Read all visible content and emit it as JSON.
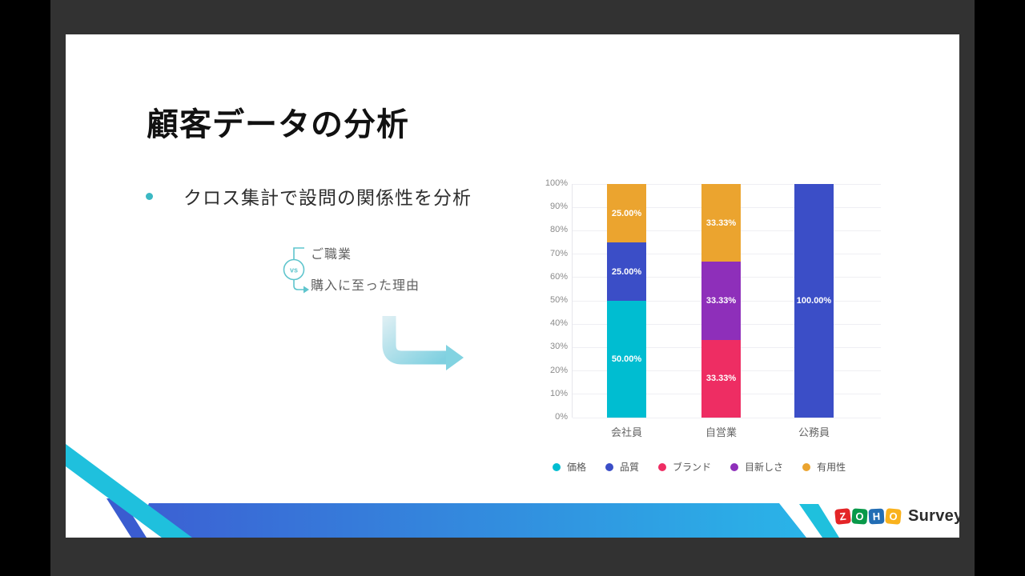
{
  "slide": {
    "title": "顧客データの分析",
    "bullet": "クロス集計で設問の関係性を分析"
  },
  "vs_diagram": {
    "badge": "vs",
    "top_label": "ご職業",
    "bottom_label": "購入に至った理由"
  },
  "chart_data": {
    "type": "bar",
    "stacked": true,
    "title": "",
    "xlabel": "",
    "ylabel": "",
    "ylim": [
      0,
      100
    ],
    "grid": true,
    "legend_position": "bottom",
    "y_ticks": [
      "0%",
      "10%",
      "20%",
      "30%",
      "40%",
      "50%",
      "60%",
      "70%",
      "80%",
      "90%",
      "100%"
    ],
    "categories": [
      "会社員",
      "自営業",
      "公務員"
    ],
    "series": [
      {
        "name": "価格",
        "color": "#00bdd1",
        "values": [
          50,
          0,
          0
        ]
      },
      {
        "name": "品質",
        "color": "#3b4ec7",
        "values": [
          25,
          0,
          100
        ]
      },
      {
        "name": "ブランド",
        "color": "#ee2d63",
        "values": [
          0,
          33.33,
          0
        ]
      },
      {
        "name": "目新しさ",
        "color": "#8e2fba",
        "values": [
          0,
          33.33,
          0
        ]
      },
      {
        "name": "有用性",
        "color": "#eba42f",
        "values": [
          25,
          33.33,
          0
        ]
      }
    ],
    "segment_labels": [
      "50.00%",
      "25.00%",
      "25.00%",
      "33.33%",
      "33.33%",
      "33.33%",
      "100.00%"
    ]
  },
  "logo": {
    "tiles": [
      {
        "letter": "Z",
        "color": "#e42527"
      },
      {
        "letter": "O",
        "color": "#089949"
      },
      {
        "letter": "H",
        "color": "#226db4"
      },
      {
        "letter": "O",
        "color": "#f9b21d"
      }
    ],
    "product": "Survey"
  },
  "colors": {
    "accent_teal": "#3bb8c3",
    "vs_teal": "#5fc5cd",
    "band_left": "#3c5fd3",
    "band_right": "#2ab4e8",
    "stripe_cyan": "#1fc0dd",
    "stripe_blue": "#3a5cd0"
  }
}
